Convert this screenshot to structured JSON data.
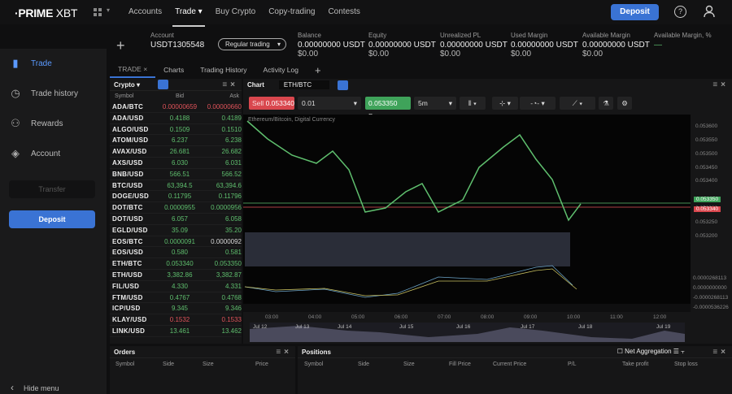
{
  "brand": {
    "logo_bold": "·PRIME",
    "logo_rest": " XBT"
  },
  "nav": {
    "items": [
      "Accounts",
      "Trade",
      "Buy Crypto",
      "Copy-trading",
      "Contests"
    ],
    "active": "Trade",
    "deposit": "Deposit"
  },
  "account": {
    "label": "Account",
    "id": "USDT1305548",
    "mode": "Regular trading",
    "stats": [
      {
        "label": "Balance",
        "value": "0.00000000 USDT",
        "usd": "$0.00"
      },
      {
        "label": "Equity",
        "value": "0.00000000 USDT",
        "usd": "$0.00"
      },
      {
        "label": "Unrealized PL",
        "value": "0.00000000 USDT",
        "usd": "$0.00"
      },
      {
        "label": "Used Margin",
        "value": "0.00000000 USDT",
        "usd": "$0.00"
      },
      {
        "label": "Available Margin",
        "value": "0.00000000 USDT",
        "usd": "$0.00"
      },
      {
        "label": "Available Margin, %",
        "value": "—",
        "usd": ""
      }
    ]
  },
  "sidebar": {
    "items": [
      "Trade",
      "Trade history",
      "Rewards",
      "Account"
    ],
    "transfer": "Transfer",
    "deposit": "Deposit",
    "hide": "Hide menu"
  },
  "tabs": [
    "TRADE",
    "Charts",
    "Trading History",
    "Activity Log"
  ],
  "market": {
    "title": "Crypto",
    "columns": [
      "Symbol",
      "Bid",
      "Ask"
    ],
    "rows": [
      [
        "ADA/BTC",
        "0.00000659",
        "0.00000660",
        "r"
      ],
      [
        "ADA/USD",
        "0.4188",
        "0.4189",
        "g"
      ],
      [
        "ALGO/USD",
        "0.1509",
        "0.1510",
        "g"
      ],
      [
        "ATOM/USD",
        "6.237",
        "6.238",
        "g"
      ],
      [
        "AVAX/USD",
        "26.681",
        "26.682",
        "g"
      ],
      [
        "AXS/USD",
        "6.030",
        "6.031",
        "g"
      ],
      [
        "BNB/USD",
        "566.51",
        "566.52",
        "g"
      ],
      [
        "BTC/USD",
        "63,394.5",
        "63,394.6",
        "g"
      ],
      [
        "DOGE/USD",
        "0.11795",
        "0.11796",
        "g"
      ],
      [
        "DOT/BTC",
        "0.0000955",
        "0.0000956",
        "g"
      ],
      [
        "DOT/USD",
        "6.057",
        "6.058",
        "g"
      ],
      [
        "EGLD/USD",
        "35.09",
        "35.20",
        "g"
      ],
      [
        "EOS/BTC",
        "0.0000091",
        "0.0000092",
        "gw"
      ],
      [
        "EOS/USD",
        "0.580",
        "0.581",
        "g"
      ],
      [
        "ETH/BTC",
        "0.053340",
        "0.053350",
        "g"
      ],
      [
        "ETH/USD",
        "3,382.86",
        "3,382.87",
        "g"
      ],
      [
        "FIL/USD",
        "4.330",
        "4.331",
        "g"
      ],
      [
        "FTM/USD",
        "0.4767",
        "0.4768",
        "g"
      ],
      [
        "ICP/USD",
        "9.345",
        "9.346",
        "g"
      ],
      [
        "KLAY/USD",
        "0.1532",
        "0.1533",
        "r"
      ],
      [
        "LINK/USD",
        "13.461",
        "13.462",
        "g"
      ]
    ]
  },
  "chart": {
    "title": "Chart",
    "symbol": "ETH/BTC",
    "sell_label": "Sell",
    "sell_price": "0.053340",
    "qty": "0.01",
    "buy_price": "0.053350",
    "buy_label": "Buy",
    "interval": "5m",
    "legend": "Ethereum/Bitcoin, Digital Currency",
    "price_ticks": [
      "0.053600",
      "0.053550",
      "0.053500",
      "0.053450",
      "0.053400",
      "0.053300",
      "0.053250",
      "0.053200"
    ],
    "ask_tag": "0.053350",
    "bid_tag": "0.053340",
    "macd_ticks": [
      "0.0000268113",
      "0.0000000000",
      "-0.0000268113",
      "-0.0000536226"
    ],
    "time_ticks": [
      "03:00",
      "04:00",
      "05:00",
      "06:00",
      "07:00",
      "08:00",
      "09:00",
      "10:00",
      "11:00",
      "12:00"
    ],
    "nav_dates": [
      "Jul 12",
      "Jul 13",
      "Jul 14",
      "Jul 15",
      "Jul 16",
      "Jul 17",
      "Jul 18",
      "Jul 19"
    ]
  },
  "orders": {
    "title": "Orders",
    "columns": [
      "Symbol",
      "Side",
      "Size",
      "Price"
    ]
  },
  "positions": {
    "title": "Positions",
    "net": "Net Aggregation",
    "columns": [
      "Symbol",
      "Side",
      "Size",
      "Fill Price",
      "Current Price",
      "P/L",
      "Take profit",
      "Stop loss"
    ]
  }
}
